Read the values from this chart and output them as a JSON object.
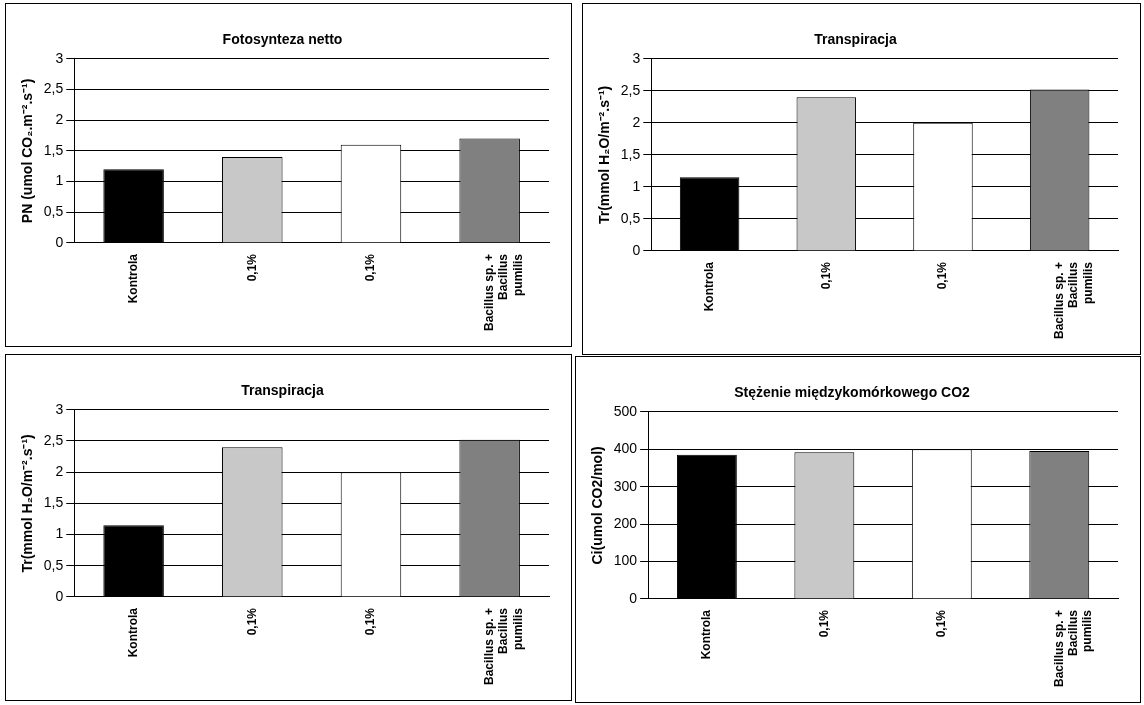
{
  "chart_data": [
    {
      "type": "bar",
      "title": "Fotosynteza netto",
      "ylabel": "PN (umol CO₂.m⁻².s⁻¹)",
      "categories": [
        "Kontrola",
        "0,1%",
        "0,1%",
        "Bacillus sp. + Bacillus pumilis"
      ],
      "values": [
        1.2,
        1.4,
        1.6,
        1.7
      ],
      "colors": [
        "#000000",
        "#c8c8c8",
        "#ffffff",
        "#808080"
      ],
      "ylim": [
        0,
        3
      ],
      "yticks": [
        0,
        {
          "value": 0.5,
          "label": "0,5"
        },
        1,
        {
          "value": 1.5,
          "label": "1,5"
        },
        2,
        {
          "value": 2.5,
          "label": "2,5"
        },
        3
      ],
      "grid": "y"
    },
    {
      "type": "bar",
      "title": "Transpiracja",
      "ylabel": "Tr(mmol H₂O/m⁻².s⁻¹)",
      "categories": [
        "Kontrola",
        "0,1%",
        "0,1%",
        "Bacillus sp. + Bacillus pumilis"
      ],
      "values": [
        1.15,
        2.4,
        2.0,
        2.52
      ],
      "colors": [
        "#000000",
        "#c8c8c8",
        "#ffffff",
        "#808080"
      ],
      "ylim": [
        0,
        3
      ],
      "yticks": [
        0,
        {
          "value": 0.5,
          "label": "0,5"
        },
        1,
        {
          "value": 1.5,
          "label": "1,5"
        },
        2,
        {
          "value": 2.5,
          "label": "2,5"
        },
        3
      ],
      "grid": "y"
    },
    {
      "type": "bar",
      "title": "Transpiracja",
      "ylabel": "Tr(mmol H₂O/m⁻².s⁻¹)",
      "categories": [
        "Kontrola",
        "0,1%",
        "0,1%",
        "Bacillus sp. + Bacillus pumilis"
      ],
      "values": [
        1.15,
        2.4,
        2.0,
        2.52
      ],
      "colors": [
        "#000000",
        "#c8c8c8",
        "#ffffff",
        "#808080"
      ],
      "ylim": [
        0,
        3
      ],
      "yticks": [
        0,
        {
          "value": 0.5,
          "label": "0,5"
        },
        1,
        {
          "value": 1.5,
          "label": "1,5"
        },
        2,
        {
          "value": 2.5,
          "label": "2,5"
        },
        3
      ],
      "grid": "y"
    },
    {
      "type": "bar",
      "title": "Stężenie międzykomórkowego CO2",
      "ylabel": "Ci(umol CO2/mol)",
      "categories": [
        "Kontrola",
        "0,1%",
        "0,1%",
        "Bacillus sp. + Bacillus pumilis"
      ],
      "values": [
        385,
        392,
        400,
        395
      ],
      "colors": [
        "#000000",
        "#c8c8c8",
        "#ffffff",
        "#808080"
      ],
      "ylim": [
        0,
        500
      ],
      "yticks": [
        0,
        100,
        200,
        300,
        400,
        500
      ],
      "grid": "y"
    }
  ]
}
